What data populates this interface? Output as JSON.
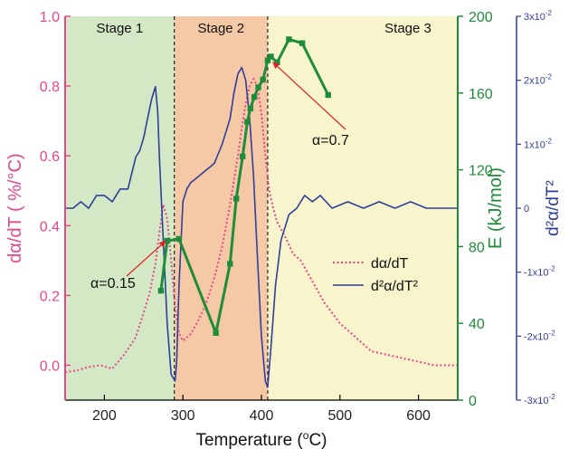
{
  "chart_data": {
    "type": "line",
    "xlabel_main": "Temperature (",
    "xlabel_unit": "C)",
    "ylabel_left": "dα/dT ( %/°C)",
    "ylabel_right1": "E (kJ/mol)",
    "ylabel_right2": "d²α/dT²",
    "xlim": [
      150,
      650
    ],
    "ylim_left": [
      -0.1,
      1.0
    ],
    "ylim_e": [
      0,
      200
    ],
    "ylim_d2": [
      -0.03,
      0.03
    ],
    "xticks": [
      200,
      300,
      400,
      500,
      600
    ],
    "yticks_left": [
      0.0,
      0.2,
      0.4,
      0.6,
      0.8,
      1.0
    ],
    "yticks_e": [
      0,
      40,
      80,
      120,
      160,
      200
    ],
    "yticks_d2": [
      {
        "v": 0.03,
        "label": "3x10",
        "sup": "-2"
      },
      {
        "v": 0.02,
        "label": "2x10",
        "sup": "-2"
      },
      {
        "v": 0.01,
        "label": "1x10",
        "sup": "-2"
      },
      {
        "v": 0.0,
        "label": "0",
        "sup": ""
      },
      {
        "v": -0.01,
        "label": "-1x10",
        "sup": "-2"
      },
      {
        "v": -0.02,
        "label": "-2x10",
        "sup": "-2"
      },
      {
        "v": -0.03,
        "label": "-3x10",
        "sup": "-2"
      }
    ],
    "stages": [
      {
        "label": "Stage 1",
        "x0": 150,
        "x1": 289,
        "color": "#d3e8c4"
      },
      {
        "label": "Stage 2",
        "x0": 289,
        "x1": 408,
        "color": "#f5c9a6"
      },
      {
        "label": "Stage 3",
        "x0": 408,
        "x1": 650,
        "color": "#f8f5cd"
      }
    ],
    "stage_dividers": [
      289,
      408
    ],
    "series": [
      {
        "name": "dα/dT",
        "axis": "left",
        "color": "#e8458b",
        "style": "dotted",
        "x": [
          150,
          165,
          180,
          195,
          210,
          225,
          240,
          250,
          258,
          265,
          270,
          275,
          280,
          285,
          290,
          295,
          300,
          310,
          320,
          330,
          340,
          350,
          360,
          370,
          375,
          380,
          385,
          390,
          395,
          400,
          405,
          410,
          415,
          420,
          430,
          440,
          450,
          460,
          470,
          480,
          490,
          500,
          510,
          520,
          530,
          540,
          560,
          580,
          600,
          620,
          640,
          650
        ],
        "y": [
          -0.02,
          -0.015,
          -0.005,
          0.0,
          -0.01,
          0.03,
          0.08,
          0.15,
          0.21,
          0.29,
          0.38,
          0.46,
          0.42,
          0.3,
          0.17,
          0.09,
          0.07,
          0.09,
          0.13,
          0.18,
          0.25,
          0.34,
          0.46,
          0.6,
          0.68,
          0.75,
          0.8,
          0.82,
          0.8,
          0.72,
          0.6,
          0.5,
          0.45,
          0.41,
          0.37,
          0.32,
          0.3,
          0.26,
          0.22,
          0.18,
          0.15,
          0.12,
          0.1,
          0.08,
          0.06,
          0.04,
          0.03,
          0.02,
          0.01,
          0.0,
          0.0,
          0.0
        ]
      },
      {
        "name": "d²α/dT²",
        "axis": "d2",
        "color": "#2f3f99",
        "style": "solid",
        "x": [
          150,
          160,
          170,
          180,
          190,
          200,
          210,
          220,
          230,
          240,
          245,
          250,
          255,
          260,
          265,
          268,
          270,
          275,
          280,
          285,
          290,
          292,
          295,
          300,
          305,
          310,
          320,
          330,
          340,
          350,
          360,
          365,
          370,
          375,
          380,
          385,
          390,
          395,
          400,
          405,
          408,
          412,
          418,
          425,
          435,
          445,
          455,
          465,
          475,
          490,
          510,
          530,
          550,
          570,
          590,
          610,
          630,
          650
        ],
        "y": [
          0.0,
          0.0,
          0.001,
          0.0,
          0.002,
          0.002,
          0.001,
          0.003,
          0.003,
          0.008,
          0.009,
          0.011,
          0.014,
          0.017,
          0.019,
          0.015,
          0.008,
          -0.005,
          -0.018,
          -0.026,
          -0.027,
          -0.024,
          -0.012,
          0.001,
          0.003,
          0.004,
          0.005,
          0.006,
          0.007,
          0.01,
          0.014,
          0.018,
          0.021,
          0.022,
          0.02,
          0.014,
          0.005,
          -0.008,
          -0.02,
          -0.027,
          -0.028,
          -0.022,
          -0.012,
          -0.005,
          -0.001,
          0.0,
          0.002,
          0.001,
          0.002,
          0.0,
          0.001,
          0.0,
          0.001,
          0.0,
          0.001,
          0.0,
          0.0,
          0.0
        ]
      },
      {
        "name": "E",
        "axis": "e",
        "color": "#1e8c3a",
        "style": "solid-square",
        "x": [
          272,
          280,
          295,
          342,
          360,
          368,
          376,
          382,
          386,
          391,
          396,
          402,
          408,
          412,
          420,
          435,
          452,
          485
        ],
        "y": [
          57,
          83,
          84,
          35,
          71,
          105,
          127,
          145,
          152,
          158,
          163,
          167,
          177,
          179,
          176,
          188,
          186,
          159
        ]
      }
    ],
    "legend": [
      {
        "label": "dα/dT",
        "color": "#e8458b",
        "style": "dotted"
      },
      {
        "label": "d²α/dT²",
        "color": "#2f3f99",
        "style": "solid"
      }
    ],
    "annotations": [
      {
        "text": "α=0.15",
        "tip_x": 283,
        "tip_y_e": 84
      },
      {
        "text": "α=0.7",
        "tip_x": 412,
        "tip_y_e": 179
      }
    ]
  }
}
